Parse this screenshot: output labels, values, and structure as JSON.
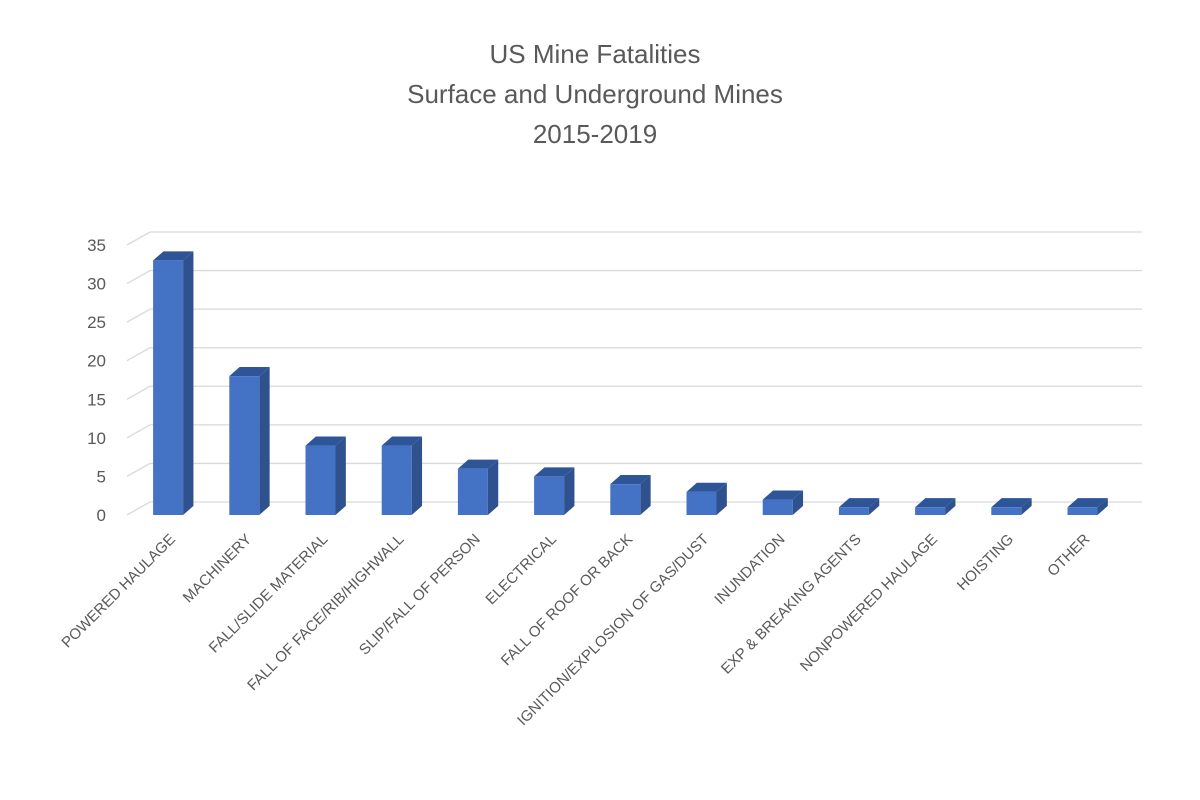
{
  "chart_data": {
    "type": "bar",
    "title": [
      "US Mine Fatalities",
      "Surface and Underground Mines",
      "2015-2019"
    ],
    "categories": [
      "POWERED HAULAGE",
      "MACHINERY",
      "FALL/SLIDE MATERIAL",
      "FALL OF FACE/RIB/HIGHWALL",
      "SLIP/FALL OF PERSON",
      "ELECTRICAL",
      "FALL OF ROOF OR BACK",
      "IGNITION/EXPLOSION OF GAS/DUST",
      "INUNDATION",
      "EXP & BREAKING AGENTS",
      "NONPOWERED HAULAGE",
      "HOISTING",
      "OTHER"
    ],
    "values": [
      33,
      18,
      9,
      9,
      6,
      5,
      4,
      3,
      2,
      1,
      1,
      1,
      1
    ],
    "ylim": [
      0,
      35
    ],
    "yticks": [
      0,
      5,
      10,
      15,
      20,
      25,
      30,
      35
    ],
    "grid": true,
    "legend": "none",
    "style": "3d-column",
    "colors": {
      "bar_front": "#4472C4",
      "bar_side": "#2F528F",
      "bar_top": "#2E5597",
      "grid": "#D9D9D9",
      "text": "#595959"
    }
  }
}
